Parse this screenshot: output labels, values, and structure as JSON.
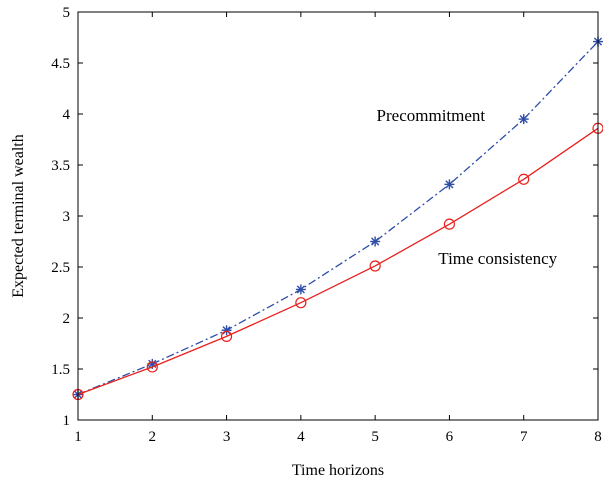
{
  "chart_data": {
    "type": "line",
    "xlabel": "Time horizons",
    "ylabel": "Expected terminal wealth",
    "xlim": [
      1,
      8
    ],
    "ylim": [
      1,
      5
    ],
    "xticks": [
      "1",
      "2",
      "3",
      "4",
      "5",
      "6",
      "7",
      "8"
    ],
    "yticks": [
      "1",
      "1.5",
      "2",
      "2.5",
      "3",
      "3.5",
      "4",
      "4.5",
      "5"
    ],
    "grid": false,
    "legend": "none",
    "x": [
      1,
      2,
      3,
      4,
      5,
      6,
      7,
      8
    ],
    "series": [
      {
        "name": "Precommitment",
        "values": [
          1.25,
          1.55,
          1.88,
          2.28,
          2.75,
          3.31,
          3.95,
          4.71
        ],
        "color": "#2e4ea8",
        "line_style": "dash-dot",
        "marker": "asterisk"
      },
      {
        "name": "Time consistency",
        "values": [
          1.25,
          1.52,
          1.82,
          2.15,
          2.51,
          2.92,
          3.36,
          3.86
        ],
        "color": "#e8211d",
        "line_style": "solid",
        "marker": "circle"
      }
    ]
  }
}
